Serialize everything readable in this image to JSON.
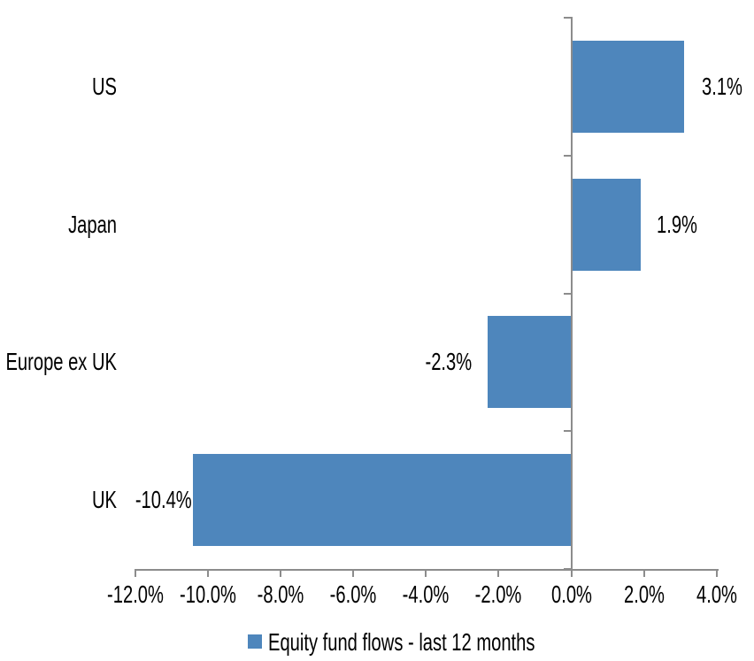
{
  "chart_data": {
    "type": "bar",
    "orientation": "horizontal",
    "title": "",
    "categories": [
      "US",
      "Japan",
      "Europe ex UK",
      "UK"
    ],
    "values": [
      3.1,
      1.9,
      -2.3,
      -10.4
    ],
    "data_labels": [
      "3.1%",
      "1.9%",
      "-2.3%",
      "-10.4%"
    ],
    "series": [
      {
        "name": "Equity fund flows - last 12 months",
        "values": [
          3.1,
          1.9,
          -2.3,
          -10.4
        ]
      }
    ],
    "xlim": [
      -12,
      4
    ],
    "x_tick_step": 2,
    "x_tick_labels": [
      "-12.0%",
      "-10.0%",
      "-8.0%",
      "-6.0%",
      "-4.0%",
      "-2.0%",
      "0.0%",
      "2.0%",
      "4.0%"
    ],
    "grid": false,
    "legend_position": "bottom",
    "colors": {
      "bar": "#4E86BC",
      "axis": "#8C8C8C",
      "text": "#000000",
      "background": "#FFFFFF"
    }
  },
  "legend": {
    "label": "Equity fund flows - last 12 months"
  }
}
